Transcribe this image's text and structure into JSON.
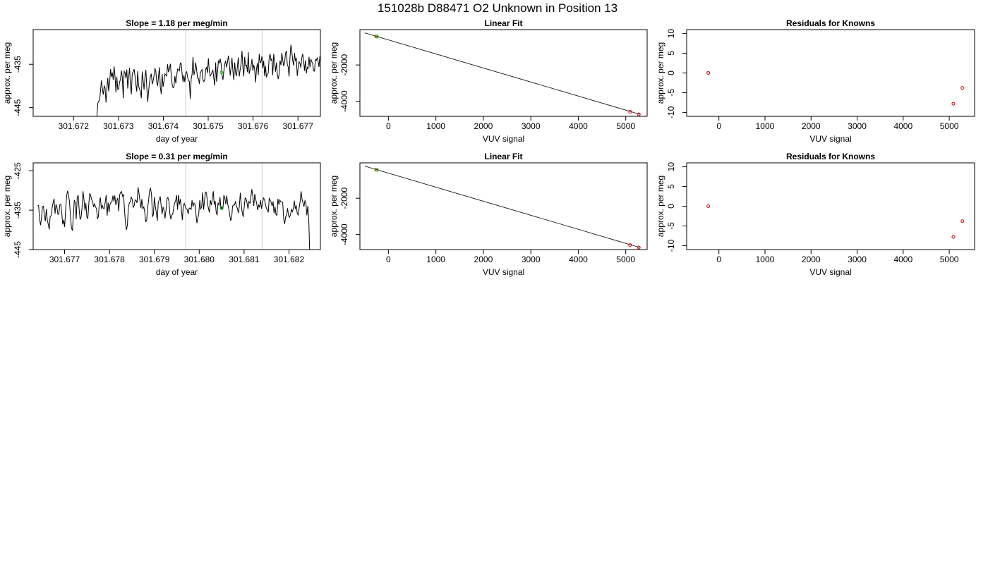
{
  "figure": {
    "title": "151028b      D88471    O2 Unknown in Position  13"
  },
  "chart_data": [
    {
      "type": "line",
      "title": "Slope =  1.18  per meg/min",
      "xlabel": "day of year",
      "ylabel": "approx. per meg",
      "xlim": [
        301.6711,
        301.6775
      ],
      "ylim": [
        -447,
        -427
      ],
      "xticks": [
        301.672,
        301.673,
        301.674,
        301.675,
        301.676,
        301.677
      ],
      "xtick_labels": [
        "301.672",
        "301.673",
        "301.674",
        "301.675",
        "301.676",
        "301.677"
      ],
      "yticks": [
        -445,
        -435
      ],
      "ytick_labels": [
        "-445",
        "-435"
      ],
      "vlines": [
        301.6745,
        301.6762
      ],
      "series": [
        {
          "x0": 301.6725,
          "dx": 2.02e-05,
          "values": [
            -448,
            -447,
            -444,
            -443.5,
            -443.2,
            -441,
            -438.7,
            -440.5,
            -442,
            -440,
            -440.5,
            -443.8,
            -441,
            -438.1,
            -441.2,
            -439.4,
            -436.1,
            -437.9,
            -436.9,
            -438.6,
            -435.5,
            -437.8,
            -441.5,
            -437.9,
            -440.8,
            -440.7,
            -439.1,
            -438.5,
            -436.4,
            -438,
            -442.8,
            -436.6,
            -436.9,
            -438.2,
            -436.2,
            -440.6,
            -438,
            -435.8,
            -440.1,
            -441.9,
            -437.1,
            -436.8,
            -436.1,
            -437.7,
            -439.8,
            -441.3,
            -436.6,
            -440,
            -440.7,
            -441.3,
            -442.8,
            -436.7,
            -438.7,
            -440.8,
            -438.1,
            -436.3,
            -440.3,
            -443.7,
            -441.3,
            -439.3,
            -437.9,
            -437.2,
            -439.6,
            -438.8,
            -437.7,
            -435.9,
            -436.6,
            -439.1,
            -440,
            -437.6,
            -435.7,
            -440.3,
            -441.9,
            -437.3,
            -440.2,
            -438.8,
            -437.2,
            -437.4,
            -437.7,
            -435,
            -436.8,
            -436.1,
            -434.9,
            -437.6,
            -439.6,
            -440.4,
            -440.3,
            -437.7,
            -439.4,
            -437.7,
            -436.1,
            -436.2,
            -436.5,
            -434.7,
            -434.8,
            -437.3,
            -439.1,
            -437.5,
            -439.1,
            -437,
            -436.7,
            -437.9,
            -438.8,
            -438.9,
            -443,
            -438.4,
            -437.3,
            -433.3,
            -437.5,
            -436.5,
            -434.6,
            -436.2,
            -438.2,
            -438.3,
            -439.5,
            -437,
            -436.6,
            -436.2,
            -438.6,
            -439,
            -438.5,
            -436.1,
            -435.7,
            -437,
            -433.6,
            -436.6,
            -437.7,
            -437.3,
            -436.8,
            -436.4,
            -438.3,
            -439.9,
            -434.6,
            -439,
            -436.9,
            -434.1,
            -434.8,
            -433.7,
            -434.9,
            -437.4,
            -438.6,
            -436.6,
            -435,
            -434.2,
            -435.7,
            -434.6,
            -433,
            -434.7,
            -437.6,
            -435.7,
            -433.5,
            -436.6,
            -438.6,
            -434.6,
            -437.1,
            -437.7,
            -435.5,
            -433.4,
            -437.8,
            -436.3,
            -434.9,
            -431.9,
            -435.5,
            -437.8,
            -433.3,
            -435.3,
            -435.2,
            -436.8,
            -432.2,
            -437.2,
            -436.2,
            -435.6,
            -433.8,
            -436.5,
            -435.1,
            -436.1,
            -439.2,
            -436.2,
            -434.7,
            -437.5,
            -432.6,
            -434.5,
            -434.6,
            -433.1,
            -435.9,
            -434.2,
            -437.7,
            -435.4,
            -438,
            -437.3,
            -437,
            -433.5,
            -432.6,
            -434.1,
            -433.7,
            -437.5,
            -432.6,
            -434.4,
            -436.7,
            -434.6,
            -437.2,
            -438.4,
            -437.3,
            -434.1,
            -435.2,
            -432.4,
            -434.1,
            -435.4,
            -434.7,
            -432.5,
            -431.9,
            -435.1,
            -435.6,
            -437.8,
            -433.5,
            -430.5,
            -432.1,
            -434.1,
            -435.3,
            -432.4,
            -434.3,
            -433.5,
            -437.7,
            -435.8,
            -434.4,
            -434.8,
            -435.8,
            -433.6,
            -432.6,
            -434.1,
            -436.5,
            -434.1,
            -437.1,
            -435.7,
            -436,
            -433.3,
            -435.7,
            -433.8,
            -434.4,
            -434.7,
            -436.5,
            -436.6,
            -433.9,
            -434.1,
            -433.5,
            -434.3,
            -435.6,
            -433.1,
            -435.7,
            -437.1,
            -436.5,
            -434.5,
            -435.5,
            -437.8,
            -434.4,
            -433.6,
            -434.5
          ]
        }
      ],
      "markers": [
        {
          "x": 301.6753,
          "y": -436.9,
          "color": "#00cc00"
        }
      ]
    },
    {
      "type": "scatter",
      "title": "Linear Fit",
      "xlabel": "VUV signal",
      "ylabel": "approx. per meg",
      "xlim": [
        -600,
        5450
      ],
      "ylim": [
        -4830,
        -50
      ],
      "xticks": [
        0,
        1000,
        2000,
        3000,
        4000,
        5000
      ],
      "xtick_labels": [
        "0",
        "1000",
        "2000",
        "3000",
        "4000",
        "5000"
      ],
      "yticks": [
        -4000,
        -2000
      ],
      "ytick_labels": [
        "-4000",
        "-2000"
      ],
      "fit_line": {
        "x": [
          -500,
          5300
        ],
        "y": [
          -230,
          -4720
        ]
      },
      "points": [
        {
          "x": -256,
          "y": -430,
          "color": "#cc0000"
        },
        {
          "x": -240,
          "y": -440,
          "color": "#00cc00"
        },
        {
          "x": 5090,
          "y": -4580,
          "color": "#cc0000"
        },
        {
          "x": 5275,
          "y": -4720,
          "color": "#cc0000"
        }
      ]
    },
    {
      "type": "scatter",
      "title": "Residuals for Knowns",
      "xlabel": "VUV signal",
      "ylabel": "approx. per meg",
      "xlim": [
        -700,
        5550
      ],
      "ylim": [
        -11,
        11
      ],
      "xticks": [
        0,
        1000,
        2000,
        3000,
        4000,
        5000
      ],
      "xtick_labels": [
        "0",
        "1000",
        "2000",
        "3000",
        "4000",
        "5000"
      ],
      "yticks": [
        -10,
        -5,
        0,
        5,
        10
      ],
      "ytick_labels": [
        "-10",
        "-5",
        "0",
        "5",
        "10"
      ],
      "points": [
        {
          "x": -230,
          "y": 0,
          "color": "#cc0000"
        },
        {
          "x": 5090,
          "y": -7.8,
          "color": "#cc0000"
        },
        {
          "x": 5285,
          "y": -3.8,
          "color": "#cc0000"
        }
      ]
    },
    {
      "type": "line",
      "title": "Slope =  0.31  per meg/min",
      "xlabel": "day of year",
      "ylabel": "approx. per meg",
      "xlim": [
        301.6763,
        301.6827
      ],
      "ylim": [
        -445,
        -423
      ],
      "xticks": [
        301.677,
        301.678,
        301.679,
        301.68,
        301.681,
        301.682
      ],
      "xtick_labels": [
        "301.677",
        "301.678",
        "301.679",
        "301.680",
        "301.681",
        "301.682"
      ],
      "yticks": [
        -445,
        -435,
        -425
      ],
      "ytick_labels": [
        "-445",
        "-435",
        "-425"
      ],
      "vlines": [
        301.6797,
        301.6814
      ],
      "series": [
        {
          "x0": 301.6764,
          "dx": 2.15e-05,
          "values": [
            -433.8,
            -433.8,
            -437.3,
            -438.8,
            -437,
            -434.1,
            -434,
            -436.6,
            -437.8,
            -434.7,
            -437.5,
            -438.6,
            -439.9,
            -436.6,
            -436.4,
            -434.4,
            -433.1,
            -432.1,
            -435.9,
            -433.5,
            -434.3,
            -436.1,
            -435.9,
            -433.6,
            -433.5,
            -435.7,
            -438.6,
            -437.5,
            -439.3,
            -434.9,
            -431.4,
            -430.1,
            -431.2,
            -432.9,
            -436.4,
            -439.4,
            -440.2,
            -436.6,
            -432.4,
            -433.2,
            -437.3,
            -431.8,
            -431.2,
            -434.9,
            -437.4,
            -436.8,
            -434.3,
            -430.2,
            -432.3,
            -435.1,
            -433.2,
            -436.8,
            -437.1,
            -433.5,
            -430.7,
            -431.4,
            -432.3,
            -432.9,
            -434.2,
            -433.4,
            -434.2,
            -434.6,
            -437.2,
            -436.6,
            -432.6,
            -431.8,
            -434.6,
            -433.8,
            -434.5,
            -434.6,
            -433,
            -431.2,
            -436.4,
            -433.1,
            -435.5,
            -433.5,
            -433,
            -432.9,
            -431.3,
            -432.8,
            -431.3,
            -433.7,
            -432.6,
            -431.9,
            -435.3,
            -431.1,
            -430.5,
            -430.3,
            -431.5,
            -431,
            -434.8,
            -438.3,
            -440,
            -438.8,
            -434.4,
            -433.2,
            -432.9,
            -431.7,
            -432.3,
            -434.3,
            -433.9,
            -432.4,
            -432.5,
            -433.2,
            -429.2,
            -430.7,
            -432.5,
            -434.5,
            -432.2,
            -434.6,
            -434.2,
            -435.5,
            -438,
            -437.4,
            -434.5,
            -432.4,
            -430,
            -429.5,
            -431,
            -436.7,
            -436.1,
            -431.7,
            -434.2,
            -435.6,
            -437.7,
            -432.9,
            -432.5,
            -431.5,
            -433.9,
            -436,
            -434.2,
            -435.1,
            -437.1,
            -435,
            -432.2,
            -431.8,
            -432.6,
            -435.9,
            -437.3,
            -436.3,
            -436,
            -434.3,
            -433.2,
            -432.6,
            -431.2,
            -434.9,
            -431.1,
            -433.6,
            -432.2,
            -434.9,
            -437.5,
            -433.7,
            -433.3,
            -434.1,
            -434.6,
            -434.9,
            -436,
            -434.5,
            -434.5,
            -434.8,
            -432.5,
            -434.1,
            -433.2,
            -433.5,
            -435.9,
            -438.3,
            -437.1,
            -435.8,
            -432.4,
            -434.7,
            -434.2,
            -430.5,
            -434.9,
            -432.4,
            -430.4,
            -430.6,
            -433.3,
            -434.6,
            -435.6,
            -432.5,
            -433.7,
            -432.1,
            -430.2,
            -433.6,
            -432.7,
            -435.5,
            -436.3,
            -433.1,
            -433.7,
            -431.7,
            -434.9,
            -434.1,
            -434.8,
            -431.2,
            -432,
            -433.5,
            -431.3,
            -433.5,
            -434.6,
            -436,
            -437.6,
            -437.2,
            -434,
            -433.7,
            -433.7,
            -432.9,
            -433.9,
            -434.6,
            -435.7,
            -434.1,
            -430.6,
            -433.6,
            -435.6,
            -436.7,
            -434.3,
            -431.9,
            -432.1,
            -433.2,
            -434.7,
            -432.8,
            -433.3,
            -431.6,
            -429.7,
            -431.6,
            -433.9,
            -430.9,
            -432.3,
            -433.3,
            -435,
            -433.7,
            -434.3,
            -432.5,
            -434.6,
            -433.4,
            -431.9,
            -432.3,
            -433.4,
            -434.5,
            -434.9,
            -435.6,
            -432,
            -432.5,
            -433,
            -434,
            -432.8,
            -435.8,
            -434.1,
            -436.1,
            -436.3,
            -432.1,
            -433.6,
            -432.4,
            -432.9,
            -432.9,
            -433.1,
            -437.2,
            -438.5,
            -436.7,
            -436.4,
            -434.5,
            -436.3,
            -436.8,
            -436.2,
            -434.8,
            -435.4,
            -434.6,
            -432.6,
            -434.7,
            -433.8,
            -435.8,
            -436.2,
            -434.4,
            -432.8,
            -430.2,
            -432.2,
            -433.2,
            -434.1,
            -432.6,
            -433.2,
            -436.3,
            -433.9,
            -437.8,
            -446
          ]
        }
      ],
      "markers": [
        {
          "x": 301.6805,
          "y": -434.5,
          "color": "#00cc00"
        }
      ]
    },
    {
      "type": "scatter",
      "title": "Linear Fit",
      "xlabel": "VUV signal",
      "ylabel": "approx. per meg",
      "xlim": [
        -600,
        5450
      ],
      "ylim": [
        -4830,
        -50
      ],
      "xticks": [
        0,
        1000,
        2000,
        3000,
        4000,
        5000
      ],
      "xtick_labels": [
        "0",
        "1000",
        "2000",
        "3000",
        "4000",
        "5000"
      ],
      "yticks": [
        -4000,
        -2000
      ],
      "ytick_labels": [
        "-4000",
        "-2000"
      ],
      "fit_line": {
        "x": [
          -500,
          5300
        ],
        "y": [
          -230,
          -4720
        ]
      },
      "points": [
        {
          "x": -256,
          "y": -430,
          "color": "#cc0000"
        },
        {
          "x": -240,
          "y": -440,
          "color": "#00cc00"
        },
        {
          "x": 5090,
          "y": -4580,
          "color": "#cc0000"
        },
        {
          "x": 5275,
          "y": -4720,
          "color": "#cc0000"
        }
      ]
    },
    {
      "type": "scatter",
      "title": "Residuals for Knowns",
      "xlabel": "VUV signal",
      "ylabel": "approx. per meg",
      "xlim": [
        -700,
        5550
      ],
      "ylim": [
        -11,
        11
      ],
      "xticks": [
        0,
        1000,
        2000,
        3000,
        4000,
        5000
      ],
      "xtick_labels": [
        "0",
        "1000",
        "2000",
        "3000",
        "4000",
        "5000"
      ],
      "yticks": [
        -10,
        -5,
        0,
        5,
        10
      ],
      "ytick_labels": [
        "-10",
        "-5",
        "0",
        "5",
        "10"
      ],
      "points": [
        {
          "x": -230,
          "y": 0,
          "color": "#cc0000"
        },
        {
          "x": 5090,
          "y": -7.8,
          "color": "#cc0000"
        },
        {
          "x": 5285,
          "y": -3.8,
          "color": "#cc0000"
        }
      ]
    }
  ]
}
